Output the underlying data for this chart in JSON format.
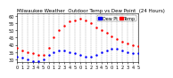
{
  "title": "Milwaukee Weather  Outdoor Temp vs Dew Point  (24 Hours)",
  "legend_temp_label": "Temp",
  "legend_dew_label": "Dew Pt",
  "temp_color": "#ff0000",
  "dew_color": "#0000ff",
  "bg_color": "#ffffff",
  "grid_color": "#999999",
  "tick_color": "#000000",
  "xlim": [
    0,
    23
  ],
  "ylim": [
    28,
    62
  ],
  "yticks": [
    30,
    35,
    40,
    45,
    50,
    55,
    60
  ],
  "hours": [
    0,
    1,
    2,
    3,
    4,
    5,
    6,
    7,
    8,
    9,
    10,
    11,
    12,
    13,
    14,
    15,
    16,
    17,
    18,
    19,
    20,
    21,
    22,
    23
  ],
  "temp": [
    38,
    36,
    35,
    34,
    33,
    33,
    38,
    45,
    50,
    53,
    56,
    57,
    58,
    57,
    55,
    52,
    50,
    48,
    46,
    44,
    42,
    41,
    40,
    39
  ],
  "dew": [
    32,
    31,
    30,
    29,
    29,
    30,
    33,
    35,
    36,
    36,
    35,
    34,
    33,
    32,
    32,
    33,
    35,
    36,
    37,
    37,
    36,
    35,
    34,
    34
  ],
  "marker_size": 1.8,
  "title_fontsize": 4.0,
  "tick_fontsize": 3.5,
  "legend_fontsize": 3.5
}
